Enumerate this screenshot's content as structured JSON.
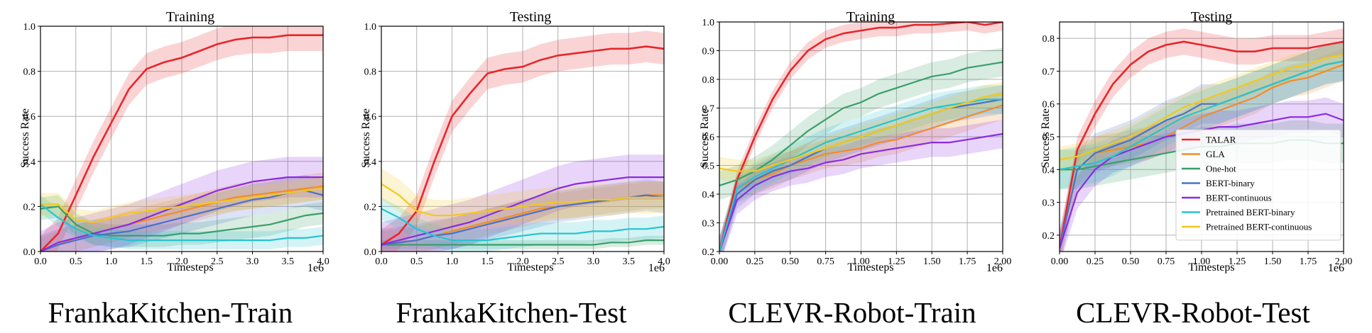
{
  "captions": [
    "FrankaKitchen-Train",
    "FrankaKitchen-Test",
    "CLEVR-Robot-Train",
    "CLEVR-Robot-Test"
  ],
  "colors": {
    "TALAR": "#e8262b",
    "GLA": "#f28c28",
    "One-hot": "#3a9f6a",
    "BERT-binary": "#4a72c8",
    "BERT-continuous": "#8a2be2",
    "Pretrained BERT-binary": "#27c4cf",
    "Pretrained BERT-continuous": "#f2c81e"
  },
  "chart_data": [
    {
      "type": "line",
      "title": "Training",
      "xlabel": "Timesteps",
      "ylabel": "Success Rate",
      "x_scale_label": "1e6",
      "xlim": [
        0,
        4.0
      ],
      "ylim": [
        0,
        1.0
      ],
      "xticks": [
        "0.0",
        "0.5",
        "1.0",
        "1.5",
        "2.0",
        "2.5",
        "3.0",
        "3.5",
        "4.0"
      ],
      "yticks": [
        "0.0",
        "0.2",
        "0.4",
        "0.6",
        "0.8",
        "1.0"
      ],
      "grid": true,
      "x": [
        0,
        0.25,
        0.5,
        0.75,
        1.0,
        1.25,
        1.5,
        1.75,
        2.0,
        2.25,
        2.5,
        2.75,
        3.0,
        3.25,
        3.5,
        3.75,
        4.0
      ],
      "series": [
        {
          "name": "TALAR",
          "values": [
            0.0,
            0.08,
            0.25,
            0.42,
            0.57,
            0.72,
            0.81,
            0.84,
            0.86,
            0.89,
            0.92,
            0.94,
            0.95,
            0.95,
            0.96,
            0.96,
            0.96
          ],
          "band": 0.07
        },
        {
          "name": "GLA",
          "values": [
            0.0,
            0.03,
            0.06,
            0.08,
            0.1,
            0.12,
            0.14,
            0.16,
            0.18,
            0.2,
            0.22,
            0.24,
            0.25,
            0.26,
            0.27,
            0.28,
            0.29
          ],
          "band": 0.06
        },
        {
          "name": "One-hot",
          "values": [
            0.19,
            0.2,
            0.12,
            0.08,
            0.07,
            0.07,
            0.07,
            0.07,
            0.08,
            0.08,
            0.09,
            0.1,
            0.11,
            0.12,
            0.14,
            0.16,
            0.17
          ],
          "band": 0.05
        },
        {
          "name": "BERT-binary",
          "values": [
            0.0,
            0.03,
            0.05,
            0.07,
            0.08,
            0.09,
            0.11,
            0.13,
            0.15,
            0.17,
            0.19,
            0.21,
            0.23,
            0.24,
            0.26,
            0.27,
            0.25
          ],
          "band": 0.07
        },
        {
          "name": "BERT-continuous",
          "values": [
            0.0,
            0.04,
            0.06,
            0.08,
            0.1,
            0.12,
            0.15,
            0.18,
            0.21,
            0.24,
            0.27,
            0.29,
            0.31,
            0.32,
            0.33,
            0.33,
            0.33
          ],
          "band": 0.09
        },
        {
          "name": "Pretrained BERT-binary",
          "values": [
            0.21,
            0.15,
            0.1,
            0.07,
            0.06,
            0.05,
            0.05,
            0.05,
            0.05,
            0.05,
            0.05,
            0.05,
            0.05,
            0.05,
            0.06,
            0.06,
            0.07
          ],
          "band": 0.04
        },
        {
          "name": "Pretrained BERT-continuous",
          "values": [
            0.21,
            0.21,
            0.14,
            0.13,
            0.15,
            0.17,
            0.18,
            0.19,
            0.2,
            0.21,
            0.22,
            0.23,
            0.24,
            0.25,
            0.26,
            0.27,
            0.28
          ],
          "band": 0.05
        }
      ]
    },
    {
      "type": "line",
      "title": "Testing",
      "xlabel": "Timesteps",
      "ylabel": "Success Rate",
      "x_scale_label": "1e6",
      "xlim": [
        0,
        4.0
      ],
      "ylim": [
        0,
        1.0
      ],
      "xticks": [
        "0.0",
        "0.5",
        "1.0",
        "1.5",
        "2.0",
        "2.5",
        "3.0",
        "3.5",
        "4.0"
      ],
      "yticks": [
        "0.0",
        "0.2",
        "0.4",
        "0.6",
        "0.8",
        "1.0"
      ],
      "grid": true,
      "x": [
        0,
        0.25,
        0.5,
        0.75,
        1.0,
        1.25,
        1.5,
        1.75,
        2.0,
        2.25,
        2.5,
        2.75,
        3.0,
        3.25,
        3.5,
        3.75,
        4.0
      ],
      "series": [
        {
          "name": "TALAR",
          "values": [
            0.03,
            0.08,
            0.18,
            0.4,
            0.6,
            0.7,
            0.79,
            0.81,
            0.82,
            0.85,
            0.87,
            0.88,
            0.89,
            0.9,
            0.9,
            0.91,
            0.9
          ],
          "band": 0.07
        },
        {
          "name": "GLA",
          "values": [
            0.03,
            0.04,
            0.05,
            0.07,
            0.09,
            0.11,
            0.13,
            0.15,
            0.17,
            0.19,
            0.2,
            0.21,
            0.22,
            0.23,
            0.24,
            0.25,
            0.25
          ],
          "band": 0.06
        },
        {
          "name": "One-hot",
          "values": [
            0.03,
            0.03,
            0.03,
            0.03,
            0.03,
            0.03,
            0.03,
            0.03,
            0.03,
            0.03,
            0.03,
            0.03,
            0.03,
            0.04,
            0.04,
            0.05,
            0.05
          ],
          "band": 0.02
        },
        {
          "name": "BERT-binary",
          "values": [
            0.03,
            0.04,
            0.05,
            0.07,
            0.08,
            0.1,
            0.12,
            0.14,
            0.16,
            0.18,
            0.2,
            0.21,
            0.22,
            0.23,
            0.24,
            0.25,
            0.24
          ],
          "band": 0.07
        },
        {
          "name": "BERT-continuous",
          "values": [
            0.03,
            0.05,
            0.07,
            0.09,
            0.11,
            0.13,
            0.16,
            0.19,
            0.22,
            0.25,
            0.28,
            0.3,
            0.31,
            0.32,
            0.33,
            0.33,
            0.33
          ],
          "band": 0.1
        },
        {
          "name": "Pretrained BERT-binary",
          "values": [
            0.19,
            0.15,
            0.1,
            0.07,
            0.05,
            0.05,
            0.05,
            0.06,
            0.07,
            0.08,
            0.08,
            0.08,
            0.09,
            0.09,
            0.1,
            0.1,
            0.11
          ],
          "band": 0.05
        },
        {
          "name": "Pretrained BERT-continuous",
          "values": [
            0.3,
            0.25,
            0.18,
            0.16,
            0.16,
            0.17,
            0.18,
            0.19,
            0.2,
            0.21,
            0.22,
            0.22,
            0.23,
            0.23,
            0.24,
            0.24,
            0.24
          ],
          "band": 0.07
        }
      ]
    },
    {
      "type": "line",
      "title": "Training",
      "xlabel": "Timesteps",
      "ylabel": "Success Rate",
      "x_scale_label": "1e6",
      "xlim": [
        0,
        2.0
      ],
      "ylim": [
        0.2,
        1.0
      ],
      "xticks": [
        "0.00",
        "0.25",
        "0.50",
        "0.75",
        "1.00",
        "1.25",
        "1.50",
        "1.75",
        "2.00"
      ],
      "yticks": [
        "0.2",
        "0.3",
        "0.4",
        "0.5",
        "0.6",
        "0.7",
        "0.8",
        "0.9",
        "1.0"
      ],
      "grid": true,
      "x": [
        0,
        0.125,
        0.25,
        0.375,
        0.5,
        0.625,
        0.75,
        0.875,
        1.0,
        1.125,
        1.25,
        1.375,
        1.5,
        1.625,
        1.75,
        1.875,
        2.0
      ],
      "series": [
        {
          "name": "TALAR",
          "values": [
            0.2,
            0.45,
            0.6,
            0.73,
            0.83,
            0.9,
            0.94,
            0.96,
            0.97,
            0.98,
            0.98,
            0.99,
            0.99,
            0.995,
            1.0,
            0.99,
            1.0
          ],
          "band": 0.03
        },
        {
          "name": "GLA",
          "values": [
            0.2,
            0.42,
            0.45,
            0.47,
            0.5,
            0.52,
            0.54,
            0.55,
            0.56,
            0.58,
            0.59,
            0.61,
            0.63,
            0.65,
            0.67,
            0.69,
            0.71
          ],
          "band": 0.05
        },
        {
          "name": "One-hot",
          "values": [
            0.43,
            0.45,
            0.48,
            0.52,
            0.57,
            0.62,
            0.66,
            0.7,
            0.72,
            0.75,
            0.77,
            0.79,
            0.81,
            0.82,
            0.84,
            0.85,
            0.86
          ],
          "band": 0.05
        },
        {
          "name": "BERT-binary",
          "values": [
            0.2,
            0.4,
            0.45,
            0.48,
            0.5,
            0.53,
            0.56,
            0.58,
            0.6,
            0.62,
            0.64,
            0.66,
            0.68,
            0.7,
            0.71,
            0.72,
            0.73
          ],
          "band": 0.05
        },
        {
          "name": "BERT-continuous",
          "values": [
            0.2,
            0.38,
            0.43,
            0.46,
            0.48,
            0.49,
            0.51,
            0.52,
            0.54,
            0.55,
            0.56,
            0.57,
            0.58,
            0.58,
            0.59,
            0.6,
            0.61
          ],
          "band": 0.05
        },
        {
          "name": "Pretrained BERT-binary",
          "values": [
            0.2,
            0.42,
            0.46,
            0.49,
            0.52,
            0.55,
            0.58,
            0.6,
            0.62,
            0.64,
            0.66,
            0.68,
            0.7,
            0.71,
            0.72,
            0.73,
            0.73
          ],
          "band": 0.05
        },
        {
          "name": "Pretrained BERT-continuous",
          "values": [
            0.49,
            0.48,
            0.48,
            0.5,
            0.52,
            0.54,
            0.56,
            0.58,
            0.6,
            0.62,
            0.64,
            0.66,
            0.68,
            0.7,
            0.72,
            0.74,
            0.75
          ],
          "band": 0.04
        }
      ]
    },
    {
      "type": "line",
      "title": "Testing",
      "xlabel": "Timesteps",
      "ylabel": "Success Rate",
      "x_scale_label": "1e6",
      "xlim": [
        0,
        2.0
      ],
      "ylim": [
        0.15,
        0.85
      ],
      "xticks": [
        "0.00",
        "0.25",
        "0.50",
        "0.75",
        "1.00",
        "1.25",
        "1.50",
        "1.75",
        "2.00"
      ],
      "yticks": [
        "0.2",
        "0.3",
        "0.4",
        "0.5",
        "0.6",
        "0.7",
        "0.8"
      ],
      "grid": true,
      "legend_position": "lower-right",
      "x": [
        0,
        0.125,
        0.25,
        0.375,
        0.5,
        0.625,
        0.75,
        0.875,
        1.0,
        1.125,
        1.25,
        1.375,
        1.5,
        1.625,
        1.75,
        1.875,
        2.0
      ],
      "series": [
        {
          "name": "TALAR",
          "values": [
            0.16,
            0.46,
            0.57,
            0.66,
            0.72,
            0.76,
            0.78,
            0.79,
            0.78,
            0.77,
            0.76,
            0.76,
            0.77,
            0.77,
            0.77,
            0.78,
            0.79
          ],
          "band": 0.04
        },
        {
          "name": "GLA",
          "values": [
            0.16,
            0.4,
            0.45,
            0.46,
            0.47,
            0.48,
            0.5,
            0.53,
            0.56,
            0.58,
            0.6,
            0.62,
            0.65,
            0.67,
            0.68,
            0.7,
            0.72
          ],
          "band": 0.05
        },
        {
          "name": "One-hot",
          "values": [
            0.4,
            0.4,
            0.41,
            0.42,
            0.43,
            0.44,
            0.45,
            0.46,
            0.47,
            0.47,
            0.48,
            0.48,
            0.48,
            0.49,
            0.49,
            0.48,
            0.48
          ],
          "band": 0.06
        },
        {
          "name": "BERT-binary",
          "values": [
            0.16,
            0.4,
            0.45,
            0.47,
            0.49,
            0.52,
            0.55,
            0.57,
            0.6,
            0.6,
            0.62,
            0.64,
            0.66,
            0.68,
            0.7,
            0.72,
            0.73
          ],
          "band": 0.06
        },
        {
          "name": "BERT-continuous",
          "values": [
            0.16,
            0.33,
            0.4,
            0.44,
            0.46,
            0.48,
            0.5,
            0.51,
            0.52,
            0.53,
            0.53,
            0.54,
            0.55,
            0.56,
            0.56,
            0.57,
            0.55
          ],
          "band": 0.05
        },
        {
          "name": "Pretrained BERT-binary",
          "values": [
            0.4,
            0.41,
            0.42,
            0.44,
            0.47,
            0.5,
            0.53,
            0.56,
            0.58,
            0.6,
            0.62,
            0.64,
            0.66,
            0.68,
            0.7,
            0.72,
            0.73
          ],
          "band": 0.06
        },
        {
          "name": "Pretrained BERT-continuous",
          "values": [
            0.43,
            0.44,
            0.46,
            0.48,
            0.5,
            0.53,
            0.56,
            0.59,
            0.61,
            0.63,
            0.65,
            0.67,
            0.69,
            0.71,
            0.72,
            0.74,
            0.75
          ],
          "band": 0.04
        }
      ]
    }
  ]
}
